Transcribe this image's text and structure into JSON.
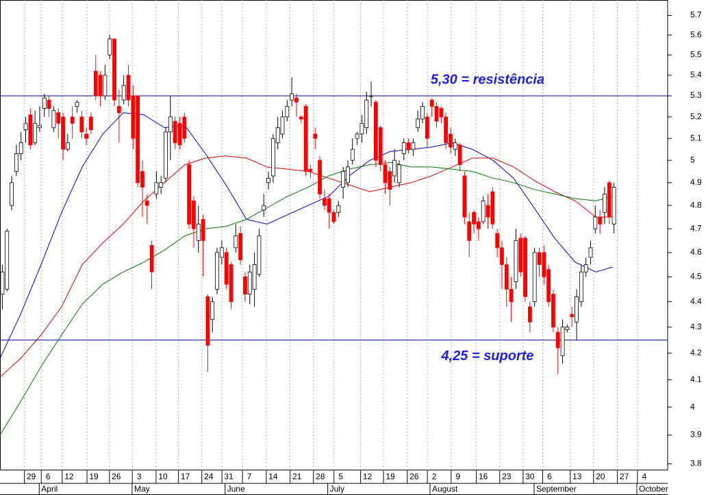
{
  "chart_data": {
    "type": "candlestick",
    "up_color": "#ffffff",
    "down_color": "#ff0000",
    "outline_color": "#000000",
    "log_scale": true,
    "grid": true,
    "ylim": [
      3.78,
      5.78
    ],
    "yticks": [
      3.8,
      3.9,
      4.0,
      4.1,
      4.2,
      4.3,
      4.4,
      4.5,
      4.6,
      4.7,
      4.8,
      4.9,
      5.0,
      5.1,
      5.2,
      5.3,
      5.4,
      5.5,
      5.6,
      5.7
    ],
    "xlim": [
      -0.5,
      142.5
    ],
    "xticks": [
      {
        "value": 6.2,
        "label": "29"
      },
      {
        "value": 9.8,
        "label": "6"
      },
      {
        "value": 14.3,
        "label": "12"
      },
      {
        "value": 19.6,
        "label": "19"
      },
      {
        "value": 24.4,
        "label": "26"
      },
      {
        "value": 29.3,
        "label": "3"
      },
      {
        "value": 34.4,
        "label": "10"
      },
      {
        "value": 39.2,
        "label": "17"
      },
      {
        "value": 44.2,
        "label": "24"
      },
      {
        "value": 48.5,
        "label": "31"
      },
      {
        "value": 52.9,
        "label": "7"
      },
      {
        "value": 58.0,
        "label": "14"
      },
      {
        "value": 63.1,
        "label": "21"
      },
      {
        "value": 68.1,
        "label": "28"
      },
      {
        "value": 72.5,
        "label": "5"
      },
      {
        "value": 78.2,
        "label": "12"
      },
      {
        "value": 83.1,
        "label": "19"
      },
      {
        "value": 88.2,
        "label": "26"
      },
      {
        "value": 92.5,
        "label": "2"
      },
      {
        "value": 97.6,
        "label": "9"
      },
      {
        "value": 103.0,
        "label": "16"
      },
      {
        "value": 108.0,
        "label": "23"
      },
      {
        "value": 113.0,
        "label": "30"
      },
      {
        "value": 117.2,
        "label": "6"
      },
      {
        "value": 123.1,
        "label": "13"
      },
      {
        "value": 128.1,
        "label": "20"
      },
      {
        "value": 133.2,
        "label": "27"
      },
      {
        "value": 137.5,
        "label": "4"
      }
    ],
    "months": [
      {
        "value": 7.9,
        "label": "April"
      },
      {
        "value": 27.8,
        "label": "May"
      },
      {
        "value": 47.7,
        "label": "June"
      },
      {
        "value": 69.7,
        "label": "July"
      },
      {
        "value": 91.6,
        "label": "August"
      },
      {
        "value": 113.9,
        "label": "September"
      },
      {
        "value": 135.9,
        "label": "October"
      }
    ],
    "open": [
      4.43,
      4.45,
      4.8,
      4.95,
      5.03,
      5.14,
      5.21,
      5.08,
      5.15,
      5.24,
      5.28,
      5.15,
      5.22,
      5.2,
      5.05,
      5.2,
      5.25,
      5.2,
      5.12,
      5.2,
      5.42,
      5.4,
      5.3,
      5.5,
      5.58,
      5.25,
      5.28,
      5.4,
      5.3,
      5.3,
      4.95,
      4.82,
      4.63,
      4.85,
      4.88,
      4.92,
      5.13,
      5.18,
      5.17,
      5.2,
      4.98,
      4.82,
      4.65,
      4.74,
      4.42,
      4.33,
      4.45,
      4.58,
      4.6,
      4.55,
      4.62,
      4.68,
      4.5,
      4.43,
      4.45,
      4.51,
      4.78,
      4.9,
      4.93,
      5.08,
      5.12,
      5.2,
      5.28,
      5.29,
      5.2,
      5.25,
      4.96,
      5.12,
      5.0,
      4.83,
      4.83,
      4.77,
      4.77,
      4.88,
      4.9,
      5.0,
      5.1,
      5.12,
      5.15,
      5.3,
      5.27,
      5.15,
      4.98,
      4.95,
      4.93,
      4.9,
      5.03,
      5.08,
      5.05,
      5.15,
      5.19,
      5.2,
      5.28,
      5.25,
      5.24,
      5.2,
      5.12,
      5.05,
      5.07,
      4.93,
      4.73,
      4.77,
      4.73,
      4.73,
      4.8,
      4.86,
      4.68,
      4.62,
      4.55,
      4.45,
      4.48,
      4.66,
      4.66,
      4.38,
      4.4,
      4.6,
      4.6,
      4.53,
      4.43,
      4.28,
      4.19,
      4.29,
      4.35,
      4.32,
      4.4,
      4.52,
      4.58,
      4.7,
      4.75,
      4.77,
      4.9,
      4.72
    ],
    "high": [
      4.55,
      4.7,
      4.93,
      5.07,
      5.13,
      5.2,
      5.24,
      5.23,
      5.25,
      5.31,
      5.3,
      5.25,
      5.24,
      5.22,
      5.12,
      5.25,
      5.28,
      5.23,
      5.15,
      5.22,
      5.5,
      5.42,
      5.45,
      5.6,
      5.58,
      5.33,
      5.4,
      5.45,
      5.35,
      5.3,
      5.0,
      4.85,
      4.65,
      4.95,
      4.93,
      5.15,
      5.3,
      5.2,
      5.2,
      5.22,
      5.0,
      4.84,
      4.8,
      4.76,
      4.43,
      4.42,
      4.62,
      4.65,
      4.62,
      4.56,
      4.72,
      4.71,
      4.52,
      4.55,
      4.6,
      4.7,
      4.85,
      4.95,
      5.12,
      5.2,
      5.23,
      5.28,
      5.39,
      5.31,
      5.21,
      5.26,
      4.98,
      5.15,
      5.02,
      4.87,
      4.85,
      4.78,
      4.82,
      4.97,
      5.0,
      5.1,
      5.13,
      5.21,
      5.32,
      5.37,
      5.28,
      5.16,
      5.0,
      4.97,
      5.05,
      5.0,
      5.1,
      5.1,
      5.1,
      5.23,
      5.27,
      5.22,
      5.29,
      5.27,
      5.25,
      5.22,
      5.15,
      5.1,
      5.08,
      4.95,
      4.77,
      4.78,
      4.75,
      4.84,
      4.85,
      4.88,
      4.7,
      4.65,
      4.58,
      4.5,
      4.7,
      4.68,
      4.67,
      4.4,
      4.62,
      4.62,
      4.63,
      4.55,
      4.45,
      4.3,
      4.33,
      4.31,
      4.38,
      4.45,
      4.55,
      4.58,
      4.65,
      4.8,
      4.78,
      4.88,
      4.91,
      4.9
    ],
    "low": [
      4.37,
      4.44,
      4.78,
      4.93,
      5.0,
      5.08,
      5.05,
      5.07,
      5.13,
      5.2,
      5.2,
      5.13,
      5.1,
      5.0,
      5.04,
      5.1,
      5.22,
      5.1,
      5.07,
      5.12,
      5.28,
      5.25,
      5.28,
      5.48,
      5.25,
      5.08,
      5.26,
      5.25,
      5.05,
      4.88,
      4.75,
      4.72,
      4.45,
      4.83,
      4.85,
      4.9,
      5.0,
      5.05,
      5.05,
      5.08,
      4.7,
      4.62,
      4.6,
      4.5,
      4.13,
      4.28,
      4.43,
      4.55,
      4.45,
      4.37,
      4.6,
      4.55,
      4.4,
      4.39,
      4.38,
      4.5,
      4.75,
      4.87,
      4.9,
      5.05,
      5.1,
      5.18,
      5.25,
      5.2,
      5.17,
      4.93,
      4.92,
      5.05,
      4.83,
      4.78,
      4.7,
      4.72,
      4.75,
      4.83,
      4.88,
      4.98,
      5.07,
      5.08,
      5.12,
      5.25,
      4.97,
      4.95,
      4.85,
      4.8,
      4.9,
      4.88,
      5.0,
      5.03,
      5.02,
      5.13,
      5.17,
      5.06,
      5.2,
      5.15,
      5.17,
      5.05,
      5.03,
      5.02,
      4.95,
      4.72,
      4.58,
      4.68,
      4.65,
      4.72,
      4.7,
      4.7,
      4.58,
      4.45,
      4.38,
      4.32,
      4.45,
      4.5,
      4.4,
      4.28,
      4.38,
      4.5,
      4.47,
      4.38,
      4.28,
      4.12,
      4.16,
      4.28,
      4.3,
      4.25,
      4.38,
      4.5,
      4.55,
      4.68,
      4.68,
      4.72,
      4.72,
      4.68
    ],
    "close": [
      4.52,
      4.69,
      4.9,
      5.03,
      5.08,
      5.17,
      5.07,
      5.17,
      5.16,
      5.29,
      5.24,
      5.23,
      5.17,
      5.05,
      5.08,
      5.17,
      5.27,
      5.13,
      5.1,
      5.14,
      5.3,
      5.3,
      5.4,
      5.58,
      5.28,
      5.22,
      5.35,
      5.28,
      5.1,
      4.9,
      4.88,
      4.8,
      4.52,
      4.9,
      4.9,
      5.13,
      5.2,
      5.08,
      5.07,
      5.1,
      4.72,
      4.7,
      4.72,
      4.65,
      4.23,
      4.4,
      4.6,
      4.62,
      4.47,
      4.4,
      4.67,
      4.57,
      4.43,
      4.52,
      4.55,
      4.67,
      4.8,
      4.92,
      5.1,
      5.15,
      5.2,
      5.25,
      5.31,
      5.27,
      5.19,
      4.95,
      4.95,
      5.1,
      4.85,
      4.8,
      4.77,
      4.73,
      4.8,
      4.95,
      4.97,
      5.05,
      5.12,
      5.17,
      5.28,
      5.3,
      5.0,
      4.98,
      4.9,
      4.87,
      5.0,
      4.98,
      5.08,
      5.05,
      5.08,
      5.19,
      5.25,
      5.1,
      5.25,
      5.18,
      5.2,
      5.08,
      5.06,
      5.08,
      4.98,
      4.75,
      4.65,
      4.72,
      4.7,
      4.82,
      4.75,
      4.72,
      4.62,
      4.55,
      4.45,
      4.4,
      4.65,
      4.52,
      4.42,
      4.32,
      4.6,
      4.55,
      4.5,
      4.4,
      4.3,
      4.22,
      4.3,
      4.3,
      4.34,
      4.42,
      4.52,
      4.55,
      4.62,
      4.75,
      4.72,
      4.85,
      4.75,
      4.88
    ],
    "lines": [
      {
        "color": "#0000cc",
        "x": [
          -0.5,
          3.9,
          8.3,
          12.7,
          17.1,
          21.5,
          25.9,
          30.3,
          34.7,
          39.1,
          43.5,
          47.9,
          52.3,
          56.7,
          61.1,
          65.5,
          69.9,
          74.3,
          78.7,
          83.1,
          87.5,
          91.9,
          96.3,
          100.7,
          105.1,
          109.5,
          113.9,
          118.3,
          122.7,
          127.1,
          130.7
        ],
        "values": [
          4.18,
          4.35,
          4.55,
          4.77,
          4.97,
          5.12,
          5.22,
          5.21,
          5.15,
          5.16,
          5.03,
          4.89,
          4.74,
          4.72,
          4.76,
          4.8,
          4.84,
          4.93,
          5.0,
          5.04,
          5.05,
          5.06,
          5.08,
          5.05,
          5.0,
          4.92,
          4.79,
          4.66,
          4.56,
          4.52,
          4.54
        ]
      },
      {
        "color": "#dd0000",
        "x": [
          -0.5,
          3.9,
          8.3,
          12.7,
          17.1,
          21.5,
          25.9,
          30.3,
          34.7,
          39.1,
          43.5,
          47.9,
          52.3,
          56.7,
          61.1,
          65.5,
          69.9,
          74.3,
          78.7,
          83.1,
          87.5,
          91.9,
          96.3,
          100.7,
          105.1,
          109.5,
          113.9,
          118.3,
          122.7,
          127.1,
          130.7
        ],
        "values": [
          4.11,
          4.18,
          4.27,
          4.38,
          4.55,
          4.64,
          4.72,
          4.82,
          4.9,
          4.98,
          5.01,
          5.02,
          5.01,
          4.97,
          4.96,
          4.95,
          4.92,
          4.89,
          4.86,
          4.88,
          4.9,
          4.93,
          4.97,
          5.01,
          5.01,
          4.97,
          4.91,
          4.86,
          4.82,
          4.75,
          4.75
        ]
      },
      {
        "color": "#007700",
        "x": [
          -0.5,
          3.9,
          8.3,
          12.7,
          17.1,
          21.5,
          25.9,
          30.3,
          34.7,
          39.1,
          43.5,
          47.9,
          52.3,
          56.7,
          61.1,
          65.5,
          69.9,
          74.3,
          78.7,
          83.1,
          87.5,
          91.9,
          96.3,
          100.7,
          105.1,
          109.5,
          113.9,
          118.3,
          122.7,
          127.1,
          130.7
        ],
        "values": [
          3.9,
          4.02,
          4.15,
          4.27,
          4.39,
          4.47,
          4.52,
          4.56,
          4.61,
          4.67,
          4.7,
          4.71,
          4.74,
          4.79,
          4.84,
          4.88,
          4.93,
          4.96,
          4.98,
          4.99,
          4.97,
          4.97,
          4.96,
          4.95,
          4.92,
          4.9,
          4.87,
          4.85,
          4.83,
          4.82,
          4.84
        ]
      }
    ],
    "hlines": [
      {
        "value": 5.3,
        "label": "5,30 = resistência",
        "color": "#000080"
      },
      {
        "value": 4.25,
        "label": "4,25 = suporte",
        "color": "#000080"
      }
    ]
  }
}
